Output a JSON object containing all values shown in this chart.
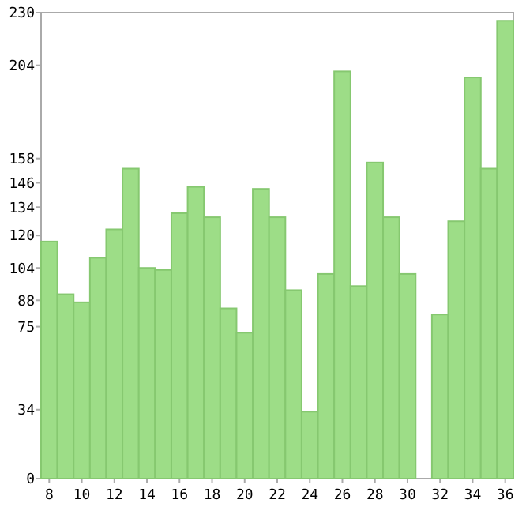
{
  "chart_data": {
    "type": "bar",
    "categories": [
      "8",
      null,
      "10",
      null,
      "12",
      null,
      "14",
      null,
      "16",
      null,
      "18",
      null,
      "20",
      null,
      "22",
      null,
      "24",
      null,
      "26",
      null,
      "28",
      null,
      "30",
      null,
      "32",
      null,
      "34",
      null,
      "36"
    ],
    "values": [
      117,
      91,
      87,
      109,
      123,
      153,
      104,
      103,
      131,
      144,
      129,
      84,
      72,
      143,
      129,
      93,
      33,
      101,
      201,
      95,
      156,
      129,
      101,
      0,
      81,
      127,
      198,
      153,
      226
    ],
    "color": "#9ddd87",
    "ylim": [
      0,
      230
    ],
    "yticks": [
      0,
      34,
      75,
      88,
      104,
      120,
      134,
      146,
      158,
      204,
      230
    ],
    "grid": false
  }
}
